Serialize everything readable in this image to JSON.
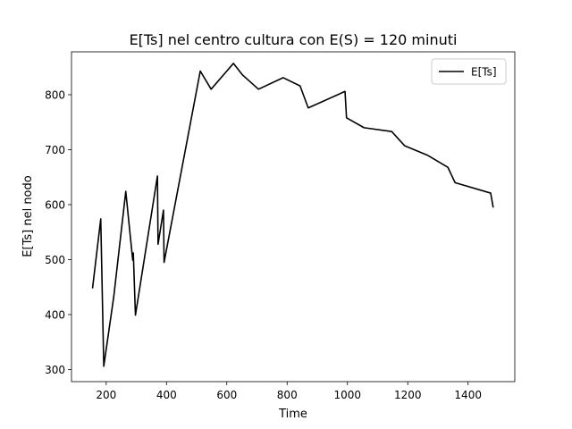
{
  "chart_data": {
    "type": "line",
    "title": "E[Ts] nel centro cultura con E(S) = 120 minuti",
    "xlabel": "Time",
    "ylabel": "E[Ts] nel nodo",
    "xlim": [
      85,
      1555
    ],
    "ylim": [
      278,
      878
    ],
    "xticks": [
      200,
      400,
      600,
      800,
      1000,
      1200,
      1400
    ],
    "yticks": [
      300,
      400,
      500,
      600,
      700,
      800
    ],
    "grid": false,
    "legend": {
      "placement": "top-right",
      "entries": [
        "E[Ts]"
      ]
    },
    "series": [
      {
        "name": "E[Ts]",
        "color": "#000000",
        "x": [
          155,
          182,
          192,
          225,
          265,
          288,
          290,
          297,
          370,
          372,
          390,
          392,
          512,
          548,
          622,
          652,
          705,
          787,
          843,
          870,
          992,
          997,
          1055,
          1147,
          1190,
          1265,
          1333,
          1357,
          1475,
          1483
        ],
        "y": [
          449,
          574,
          306,
          432,
          624,
          499,
          512,
          399,
          652,
          528,
          590,
          495,
          843,
          810,
          857,
          836,
          810,
          831,
          816,
          776,
          806,
          758,
          740,
          733,
          707,
          690,
          668,
          640,
          621,
          596
        ]
      }
    ]
  }
}
